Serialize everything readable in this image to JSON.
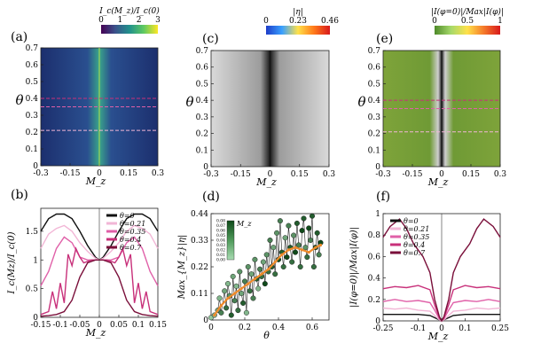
{
  "panels": {
    "a": {
      "tag": "(a)"
    },
    "b": {
      "tag": "(b)"
    },
    "c": {
      "tag": "(c)"
    },
    "d": {
      "tag": "(d)"
    },
    "e": {
      "tag": "(e)"
    },
    "f": {
      "tag": "(f)"
    }
  },
  "theme": {
    "viridis": [
      "#440154",
      "#3b528b",
      "#21918c",
      "#5ec962",
      "#fde725"
    ],
    "jet_like": [
      "#1e3cc8",
      "#39a0ff",
      "#ffe14a",
      "#ff7a1a",
      "#d7191c"
    ],
    "rdylgn": [
      "#4e8a2a",
      "#a6d96a",
      "#ffe14a",
      "#f57a2a",
      "#d7191c"
    ],
    "pink_series": [
      "#111111",
      "#f2b6d6",
      "#e060a8",
      "#c8307a",
      "#7a0f3a"
    ],
    "inset_colors": [
      "#0f4a1a",
      "#4f9a5a",
      "#a8dbb2"
    ],
    "avg_color": "#ee8a2a"
  },
  "chart_data": [
    {
      "id": "a",
      "type": "heatmap",
      "title": "I_c(M_z)/I_c(0)",
      "xlabel": "M_z",
      "ylabel": "θ",
      "xlim": [
        -0.3,
        0.3
      ],
      "ylim": [
        0,
        0.7
      ],
      "xticks": [
        "-0.3",
        "-0.15",
        "0",
        "0.15",
        "0.3"
      ],
      "yticks": [
        "0",
        "0.1",
        "0.2",
        "0.3",
        "0.4",
        "0.5",
        "0.6",
        "0.7"
      ],
      "colorbar": {
        "min": 0,
        "max": 3,
        "ticks": [
          "0",
          "1",
          "2",
          "3"
        ]
      },
      "reference_lines_theta": [
        0.21,
        0.35,
        0.4
      ]
    },
    {
      "id": "b",
      "type": "line",
      "xlabel": "M_z",
      "ylabel": "I_c(Mz)/I_c(0)",
      "xlim": [
        -0.15,
        0.15
      ],
      "ylim": [
        0,
        1.9
      ],
      "xticks": [
        "-0.15",
        "-0.1",
        "-0.05",
        "0",
        "0.05",
        "0.1",
        "0.15"
      ],
      "yticks": [
        "0",
        "0.5",
        "1",
        "1.5"
      ],
      "legend_position": "top-right",
      "series": [
        {
          "name": "θ=0",
          "x": [
            -0.15,
            -0.13,
            -0.11,
            -0.09,
            -0.07,
            -0.05,
            -0.03,
            -0.01,
            0,
            0.01,
            0.03,
            0.05,
            0.07,
            0.09,
            0.11,
            0.13,
            0.15
          ],
          "y": [
            1.5,
            1.72,
            1.8,
            1.8,
            1.72,
            1.5,
            1.25,
            1.05,
            1.0,
            1.05,
            1.25,
            1.5,
            1.72,
            1.8,
            1.8,
            1.72,
            1.5
          ]
        },
        {
          "name": "θ=0.21",
          "x": [
            -0.15,
            -0.13,
            -0.11,
            -0.09,
            -0.07,
            -0.05,
            -0.03,
            -0.01,
            0,
            0.01,
            0.03,
            0.05,
            0.07,
            0.09,
            0.11,
            0.13,
            0.15
          ],
          "y": [
            1.2,
            1.45,
            1.55,
            1.6,
            1.5,
            1.3,
            1.15,
            1.03,
            1.0,
            1.03,
            1.15,
            1.3,
            1.5,
            1.6,
            1.55,
            1.45,
            1.2
          ]
        },
        {
          "name": "θ=0.35",
          "x": [
            -0.15,
            -0.13,
            -0.11,
            -0.09,
            -0.07,
            -0.05,
            -0.03,
            -0.01,
            0,
            0.01,
            0.03,
            0.05,
            0.07,
            0.09,
            0.11,
            0.13,
            0.15
          ],
          "y": [
            0.55,
            0.8,
            1.2,
            1.4,
            1.3,
            1.05,
            1.0,
            1.0,
            1.0,
            1.0,
            1.0,
            1.05,
            1.3,
            1.4,
            1.2,
            0.8,
            0.55
          ]
        },
        {
          "name": "θ=0.4",
          "x": [
            -0.15,
            -0.13,
            -0.12,
            -0.11,
            -0.1,
            -0.09,
            -0.08,
            -0.07,
            -0.06,
            -0.05,
            -0.04,
            -0.02,
            0,
            0.02,
            0.04,
            0.05,
            0.06,
            0.07,
            0.08,
            0.09,
            0.1,
            0.11,
            0.12,
            0.13,
            0.15
          ],
          "y": [
            0.05,
            0.1,
            0.45,
            0.15,
            0.6,
            0.25,
            1.1,
            0.9,
            1.2,
            1.05,
            0.95,
            1.0,
            1.0,
            1.0,
            0.95,
            1.05,
            1.2,
            0.9,
            1.1,
            0.25,
            0.6,
            0.15,
            0.45,
            0.1,
            0.05
          ]
        },
        {
          "name": "θ=0.7",
          "x": [
            -0.15,
            -0.13,
            -0.11,
            -0.09,
            -0.07,
            -0.05,
            -0.03,
            -0.01,
            0,
            0.01,
            0.03,
            0.05,
            0.07,
            0.09,
            0.11,
            0.13,
            0.15
          ],
          "y": [
            0.02,
            0.03,
            0.05,
            0.1,
            0.3,
            0.7,
            0.95,
            1.0,
            1.0,
            1.0,
            0.95,
            0.7,
            0.3,
            0.1,
            0.05,
            0.03,
            0.02
          ]
        }
      ]
    },
    {
      "id": "c",
      "type": "heatmap",
      "title": "|η|",
      "xlabel": "M_z",
      "ylabel": "θ",
      "xlim": [
        -0.3,
        0.3
      ],
      "ylim": [
        0,
        0.7
      ],
      "xticks": [
        "-0.3",
        "-0.15",
        "0",
        "0.15",
        "0.3"
      ],
      "yticks": [
        "0",
        "0.1",
        "0.2",
        "0.3",
        "0.4",
        "0.5",
        "0.6",
        "0.7"
      ],
      "colorbar": {
        "min": 0,
        "max": 0.46,
        "ticks": [
          "0",
          "0.23",
          "0.46"
        ]
      }
    },
    {
      "id": "d",
      "type": "scatter",
      "xlabel": "θ",
      "ylabel": "Max_{M_z}|η|",
      "xlim": [
        0,
        0.7
      ],
      "ylim": [
        0,
        0.44
      ],
      "xticks": [
        "0",
        "0.2",
        "0.4",
        "0.6"
      ],
      "yticks": [
        "0",
        "0.11",
        "0.22",
        "0.33",
        "0.44"
      ],
      "inset_colorbar": {
        "label": "M_z",
        "ticks": [
          "0.00",
          "0.01",
          "0.02",
          "0.03",
          "0.04",
          "0.05",
          "0.06",
          "0.07",
          "0.08"
        ]
      },
      "series": [
        {
          "name": "points",
          "x": [
            0.0,
            0.02,
            0.04,
            0.05,
            0.06,
            0.08,
            0.09,
            0.1,
            0.11,
            0.12,
            0.13,
            0.14,
            0.15,
            0.16,
            0.17,
            0.18,
            0.19,
            0.2,
            0.21,
            0.22,
            0.23,
            0.24,
            0.25,
            0.26,
            0.27,
            0.28,
            0.29,
            0.3,
            0.31,
            0.32,
            0.33,
            0.34,
            0.35,
            0.36,
            0.37,
            0.38,
            0.39,
            0.4,
            0.41,
            0.42,
            0.43,
            0.44,
            0.45,
            0.46,
            0.47,
            0.48,
            0.49,
            0.5,
            0.51,
            0.52,
            0.53,
            0.54,
            0.55,
            0.56,
            0.57,
            0.58,
            0.59,
            0.6,
            0.61,
            0.62,
            0.63,
            0.64,
            0.65
          ],
          "y": [
            0.01,
            0.02,
            0.04,
            0.09,
            0.03,
            0.12,
            0.05,
            0.15,
            0.1,
            0.02,
            0.18,
            0.08,
            0.14,
            0.04,
            0.2,
            0.11,
            0.07,
            0.16,
            0.03,
            0.22,
            0.12,
            0.19,
            0.09,
            0.25,
            0.17,
            0.13,
            0.21,
            0.18,
            0.24,
            0.15,
            0.27,
            0.2,
            0.33,
            0.22,
            0.3,
            0.19,
            0.36,
            0.25,
            0.41,
            0.28,
            0.22,
            0.34,
            0.26,
            0.39,
            0.3,
            0.24,
            0.35,
            0.28,
            0.4,
            0.31,
            0.22,
            0.37,
            0.42,
            0.3,
            0.26,
            0.38,
            0.33,
            0.43,
            0.22,
            0.3,
            0.36,
            0.27,
            0.32
          ],
          "mz": [
            0.01,
            0.02,
            0.03,
            0.02,
            0.05,
            0.03,
            0.06,
            0.02,
            0.04,
            0.07,
            0.03,
            0.05,
            0.02,
            0.06,
            0.04,
            0.03,
            0.07,
            0.05,
            0.02,
            0.04,
            0.06,
            0.03,
            0.05,
            0.04,
            0.07,
            0.02,
            0.05,
            0.06,
            0.03,
            0.08,
            0.04,
            0.06,
            0.05,
            0.07,
            0.03,
            0.06,
            0.04,
            0.08,
            0.05,
            0.07,
            0.06,
            0.03,
            0.08,
            0.05,
            0.07,
            0.06,
            0.04,
            0.08,
            0.07,
            0.05,
            0.06,
            0.08,
            0.07,
            0.04,
            0.06,
            0.08,
            0.05,
            0.07,
            0.06,
            0.08,
            0.07,
            0.05,
            0.08
          ]
        },
        {
          "name": "average",
          "x": [
            0.02,
            0.06,
            0.1,
            0.14,
            0.18,
            0.22,
            0.26,
            0.3,
            0.34,
            0.38,
            0.42,
            0.46,
            0.5,
            0.54,
            0.58,
            0.62,
            0.65
          ],
          "y": [
            0.02,
            0.06,
            0.09,
            0.11,
            0.13,
            0.15,
            0.17,
            0.19,
            0.21,
            0.24,
            0.27,
            0.29,
            0.3,
            0.29,
            0.28,
            0.3,
            0.31
          ]
        }
      ]
    },
    {
      "id": "e",
      "type": "heatmap",
      "title": "|I(φ=0)|/Max|I(φ)|",
      "xlabel": "M_z",
      "ylabel": "θ",
      "xlim": [
        -0.3,
        0.3
      ],
      "ylim": [
        0,
        0.7
      ],
      "xticks": [
        "-0.3",
        "-0.15",
        "0",
        "0.15",
        "0.3"
      ],
      "yticks": [
        "0",
        "0.1",
        "0.2",
        "0.3",
        "0.4",
        "0.5",
        "0.6",
        "0.7"
      ],
      "colorbar": {
        "min": 0,
        "max": 1,
        "ticks": [
          "0",
          "0.5",
          "1"
        ]
      },
      "reference_lines_theta": [
        0.21,
        0.35,
        0.4
      ]
    },
    {
      "id": "f",
      "type": "line",
      "xlabel": "M_z",
      "ylabel": "|I(φ=0)|/Max|I(φ)|",
      "xlim": [
        -0.25,
        0.25
      ],
      "ylim": [
        0,
        1.0
      ],
      "xticks": [
        "-0.25",
        "-0.1",
        "0",
        "0.1",
        "0.25"
      ],
      "yticks": [
        "0",
        "0.2",
        "0.4",
        "0.6",
        "0.8",
        "1"
      ],
      "legend_position": "top-left",
      "series": [
        {
          "name": "θ=0",
          "x": [
            -0.25,
            -0.2,
            -0.15,
            -0.1,
            -0.05,
            -0.03,
            -0.01,
            0,
            0.01,
            0.03,
            0.05,
            0.1,
            0.15,
            0.2,
            0.25
          ],
          "y": [
            0.06,
            0.06,
            0.06,
            0.06,
            0.05,
            0.03,
            0.01,
            0.0,
            0.01,
            0.03,
            0.05,
            0.06,
            0.06,
            0.06,
            0.06
          ]
        },
        {
          "name": "θ=0.21",
          "x": [
            -0.25,
            -0.2,
            -0.15,
            -0.1,
            -0.05,
            -0.03,
            -0.01,
            0,
            0.01,
            0.03,
            0.05,
            0.1,
            0.15,
            0.2,
            0.25
          ],
          "y": [
            0.12,
            0.11,
            0.12,
            0.1,
            0.09,
            0.05,
            0.01,
            0.0,
            0.01,
            0.05,
            0.09,
            0.1,
            0.12,
            0.11,
            0.12
          ]
        },
        {
          "name": "θ=0.35",
          "x": [
            -0.25,
            -0.2,
            -0.15,
            -0.1,
            -0.05,
            -0.03,
            -0.01,
            0,
            0.01,
            0.03,
            0.05,
            0.1,
            0.15,
            0.2,
            0.25
          ],
          "y": [
            0.18,
            0.2,
            0.18,
            0.19,
            0.17,
            0.1,
            0.02,
            0.0,
            0.02,
            0.1,
            0.17,
            0.19,
            0.18,
            0.2,
            0.18
          ]
        },
        {
          "name": "θ=0.4",
          "x": [
            -0.25,
            -0.2,
            -0.15,
            -0.1,
            -0.05,
            -0.03,
            -0.01,
            0,
            0.01,
            0.03,
            0.05,
            0.1,
            0.15,
            0.2,
            0.25
          ],
          "y": [
            0.3,
            0.32,
            0.31,
            0.33,
            0.29,
            0.15,
            0.03,
            0.0,
            0.03,
            0.15,
            0.29,
            0.33,
            0.31,
            0.32,
            0.3
          ]
        },
        {
          "name": "θ=0.7",
          "x": [
            -0.25,
            -0.22,
            -0.18,
            -0.15,
            -0.12,
            -0.08,
            -0.05,
            -0.03,
            -0.01,
            0,
            0.01,
            0.03,
            0.05,
            0.08,
            0.12,
            0.15,
            0.18,
            0.22,
            0.25
          ],
          "y": [
            0.78,
            0.88,
            0.95,
            0.86,
            0.72,
            0.6,
            0.45,
            0.2,
            0.04,
            0.0,
            0.04,
            0.2,
            0.45,
            0.6,
            0.72,
            0.86,
            0.95,
            0.88,
            0.78
          ]
        }
      ]
    }
  ]
}
